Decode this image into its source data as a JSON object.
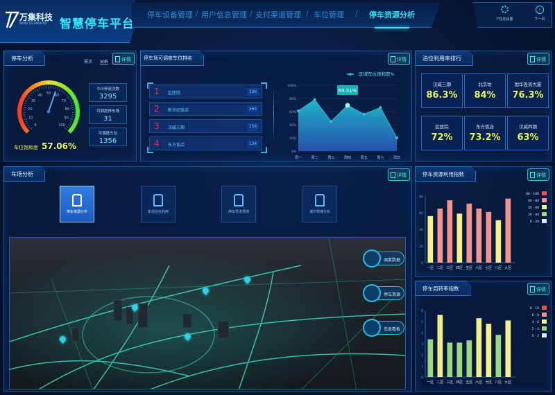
{
  "header": {
    "logo": "万集科技",
    "logo_sub": "WANJI TECHNOLOGY",
    "title": "智慧停车平台",
    "nav": [
      "停车设备管理",
      "用户信息管理",
      "支付渠道管理",
      "车位管理",
      "停车资源分析"
    ],
    "active_nav": 4,
    "settings_label": "个性化设置",
    "next_label": "下一页"
  },
  "detail_label": "详情",
  "parking_analysis": {
    "title": "停车分析",
    "tabs": [
      "需求",
      "分析"
    ],
    "gauge_label": "车位饱和度",
    "gauge_value": "57.06%",
    "gauge_percent": 57.06,
    "gauge_ticks": [
      "0",
      "10",
      "20",
      "30",
      "40",
      "50",
      "60",
      "70",
      "80",
      "90",
      "100"
    ],
    "stats": [
      {
        "label": "今日停流次数",
        "value": "3295"
      },
      {
        "label": "可调度停车场",
        "value": "31"
      },
      {
        "label": "可调度车位",
        "value": "1356"
      }
    ]
  },
  "ranking": {
    "title": "停车场可调度车位排名",
    "items": [
      {
        "rank": "1",
        "name": "区医院",
        "count": "336"
      },
      {
        "rank": "2",
        "name": "新世纪饭店",
        "count": "265"
      },
      {
        "rank": "3",
        "name": "汉威三期",
        "count": "156"
      },
      {
        "rank": "4",
        "name": "东方饭店",
        "count": "134"
      }
    ]
  },
  "chart_data": [
    {
      "type": "area",
      "legend": "区域车位饱和度%",
      "categories": [
        "周一",
        "周二",
        "周三",
        "周四",
        "周五",
        "周六",
        "周日"
      ],
      "values": [
        61,
        78,
        45,
        69.51,
        56,
        66,
        20
      ],
      "ylim": [
        0,
        100
      ],
      "yticks": [
        "0%",
        "20%",
        "40%",
        "60%",
        "80%",
        "100%"
      ],
      "tooltip": "69.51%",
      "highlight_index": 3,
      "color": "#26c6da"
    },
    {
      "type": "bar",
      "title": "停车资源利用指数",
      "categories": [
        "一区",
        "二区",
        "三区",
        "四区",
        "五区",
        "六区",
        "七区",
        "八区",
        "九区"
      ],
      "values": [
        56,
        65,
        75,
        59,
        71,
        65,
        61,
        51,
        77
      ],
      "ylim": [
        0,
        80
      ],
      "yticks": [
        "0",
        "20",
        "40",
        "60",
        "80"
      ],
      "legend": [
        {
          "label": "80 - 100",
          "color": "#f0524a"
        },
        {
          "label": "60 - 80",
          "color": "#f5928a"
        },
        {
          "label": "40 - 60",
          "color": "#f5f08a"
        },
        {
          "label": "20 - 40",
          "color": "#9dd77f"
        },
        {
          "label": "0 - 20",
          "color": "#d6eef5"
        }
      ],
      "ranges": [
        80,
        60,
        40,
        20,
        0
      ]
    },
    {
      "type": "bar",
      "title": "停车周转率指数",
      "categories": [
        "一区",
        "二区",
        "三区",
        "四区",
        "五区",
        "六区",
        "七区",
        "八区",
        "九区"
      ],
      "values": [
        3.4,
        5.6,
        3.1,
        3.1,
        3.3,
        5.3,
        4.8,
        3.8,
        5.1
      ],
      "ylim": [
        0,
        6
      ],
      "yticks": [
        "0",
        "1",
        "2",
        "3",
        "4",
        "5",
        "6"
      ],
      "legend": [
        {
          "label": "8 - 10",
          "color": "#f0524a"
        },
        {
          "label": "6 - 8",
          "color": "#f5928a"
        },
        {
          "label": "4 - 6",
          "color": "#f5f08a"
        },
        {
          "label": "2 - 4",
          "color": "#9dd77f"
        },
        {
          "label": "0 - 2",
          "color": "#d6eef5"
        }
      ],
      "ranges": [
        8,
        6,
        4,
        2,
        0
      ]
    }
  ],
  "utilization": {
    "title": "泊位利用率排行",
    "items": [
      {
        "name": "汉威三期",
        "value": "86.3%"
      },
      {
        "name": "北京坊",
        "value": "84%"
      },
      {
        "name": "国华投资大厦",
        "value": "76.3%"
      },
      {
        "name": "区医院",
        "value": "72%"
      },
      {
        "name": "东方饭店",
        "value": "73.2%"
      },
      {
        "name": "汉威四期",
        "value": "63%"
      }
    ]
  },
  "lot_analysis": {
    "title": "车场分析",
    "tiles": [
      "停车资源分布",
      "车场泊位利用",
      "停车导流预测",
      "潮汐规律分析"
    ],
    "active_tile": 0,
    "map_buttons": [
      "调度数据",
      "停车资源",
      "信息看板"
    ]
  }
}
